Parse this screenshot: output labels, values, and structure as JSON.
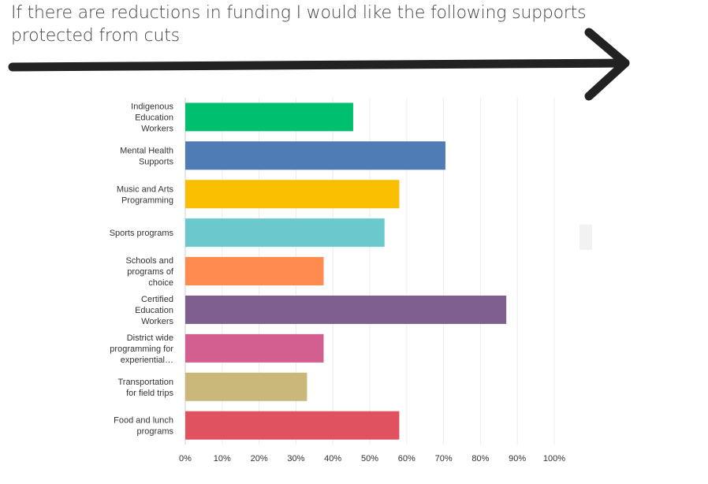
{
  "title": "If there are reductions in funding I would like the following supports protected from cuts",
  "chart_data": {
    "type": "bar",
    "orientation": "horizontal",
    "categories": [
      [
        "Indigenous",
        "Education",
        "Workers"
      ],
      [
        "Mental Health",
        "Supports"
      ],
      [
        "Music and Arts",
        "Programming"
      ],
      [
        "Sports programs"
      ],
      [
        "Schools and",
        "programs of",
        "choice"
      ],
      [
        "Certified",
        "Education",
        "Workers"
      ],
      [
        "District wide",
        "programming for",
        "experiential…"
      ],
      [
        "Transportation",
        "for field trips"
      ],
      [
        "Food and lunch",
        "programs"
      ]
    ],
    "values": [
      45.5,
      70.5,
      58,
      54,
      37.5,
      87,
      37.5,
      33,
      58
    ],
    "colors": [
      "#00bf6f",
      "#507cb6",
      "#f9be00",
      "#6bc8cd",
      "#ff8b4f",
      "#7f5f90",
      "#d25f90",
      "#c9b87a",
      "#e05260"
    ],
    "xlim": [
      0,
      100
    ],
    "xticks": [
      "0%",
      "10%",
      "20%",
      "30%",
      "40%",
      "50%",
      "60%",
      "70%",
      "80%",
      "90%",
      "100%"
    ],
    "grid": true
  }
}
